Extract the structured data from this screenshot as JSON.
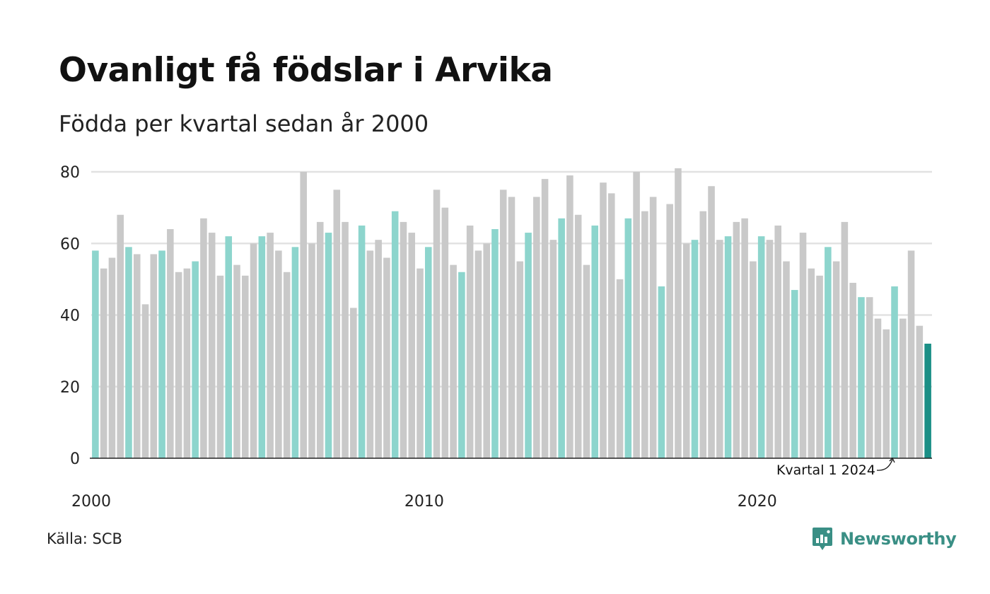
{
  "header": {
    "title": "Ovanligt få födslar i Arvika",
    "subtitle": "Födda per kvartal sedan år 2000"
  },
  "footer": {
    "source": "Källa: SCB",
    "brand": "Newsworthy"
  },
  "annotation": {
    "text": "Kvartal 1 2024"
  },
  "colors": {
    "q1": "#8dd5cd",
    "other": "#c9c9c9",
    "latest": "#1b8f86",
    "grid": "#e2e2e2",
    "axis": "#222222",
    "brand": "#3a8f85"
  },
  "chart_data": {
    "type": "bar",
    "title": "Ovanligt få födslar i Arvika",
    "subtitle": "Födda per kvartal sedan år 2000",
    "ylim": [
      0,
      80
    ],
    "yticks": [
      0,
      20,
      40,
      60,
      80
    ],
    "xticks": [
      "2000",
      "2010",
      "2020"
    ],
    "grid": true,
    "start_year": 2000,
    "values": [
      58,
      53,
      56,
      68,
      59,
      57,
      43,
      57,
      58,
      64,
      52,
      53,
      55,
      67,
      63,
      51,
      62,
      54,
      51,
      60,
      62,
      63,
      58,
      52,
      59,
      80,
      60,
      66,
      63,
      75,
      66,
      42,
      65,
      58,
      61,
      56,
      69,
      66,
      63,
      53,
      59,
      75,
      70,
      54,
      52,
      65,
      58,
      60,
      64,
      75,
      73,
      55,
      63,
      73,
      78,
      61,
      67,
      79,
      68,
      54,
      65,
      77,
      74,
      50,
      67,
      80,
      69,
      73,
      48,
      71,
      81,
      60,
      61,
      69,
      76,
      61,
      62,
      66,
      67,
      55,
      62,
      61,
      65,
      55,
      47,
      63,
      53,
      51,
      59,
      55,
      66,
      49,
      45,
      45,
      39,
      36,
      48,
      39,
      58,
      37,
      32
    ]
  }
}
